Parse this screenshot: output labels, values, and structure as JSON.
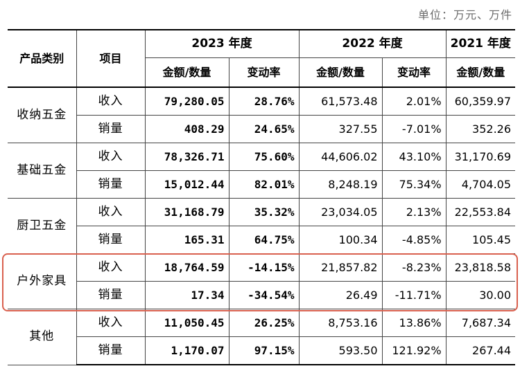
{
  "unit_note": "单位：万元、万件",
  "headers": {
    "category": "产品类别",
    "item": "项目",
    "year_2023": "2023 年度",
    "year_2022": "2022 年度",
    "year_2021": "2021 年度",
    "amount_qty": "金额/数量",
    "change_rate": "变动率"
  },
  "rows": [
    {
      "category": "收纳五金",
      "revenue": {
        "label": "收入",
        "v2023": "79,280.05",
        "r2023": "28.76%",
        "v2022": "61,573.48",
        "r2022": "2.01%",
        "v2021": "60,359.97"
      },
      "sales": {
        "label": "销量",
        "v2023": "408.29",
        "r2023": "24.65%",
        "v2022": "327.55",
        "r2022": "-7.01%",
        "v2021": "352.26"
      }
    },
    {
      "category": "基础五金",
      "revenue": {
        "label": "收入",
        "v2023": "78,326.71",
        "r2023": "75.60%",
        "v2022": "44,606.02",
        "r2022": "43.10%",
        "v2021": "31,170.69"
      },
      "sales": {
        "label": "销量",
        "v2023": "15,012.44",
        "r2023": "82.01%",
        "v2022": "8,248.19",
        "r2022": "75.34%",
        "v2021": "4,704.05"
      }
    },
    {
      "category": "厨卫五金",
      "revenue": {
        "label": "收入",
        "v2023": "31,168.79",
        "r2023": "35.32%",
        "v2022": "23,034.05",
        "r2022": "2.13%",
        "v2021": "22,553.84"
      },
      "sales": {
        "label": "销量",
        "v2023": "165.31",
        "r2023": "64.75%",
        "v2022": "100.34",
        "r2022": "-4.85%",
        "v2021": "105.45"
      }
    },
    {
      "category": "户外家具",
      "revenue": {
        "label": "收入",
        "v2023": "18,764.59",
        "r2023": "-14.15%",
        "v2022": "21,857.82",
        "r2022": "-8.23%",
        "v2021": "23,818.58"
      },
      "sales": {
        "label": "销量",
        "v2023": "17.34",
        "r2023": "-34.54%",
        "v2022": "26.49",
        "r2022": "-11.71%",
        "v2021": "30.00"
      }
    },
    {
      "category": "其他",
      "revenue": {
        "label": "收入",
        "v2023": "11,050.45",
        "r2023": "26.25%",
        "v2022": "8,753.16",
        "r2022": "13.86%",
        "v2021": "7,687.34"
      },
      "sales": {
        "label": "销量",
        "v2023": "1,170.07",
        "r2023": "97.15%",
        "v2022": "593.50",
        "r2022": "121.92%",
        "v2021": "267.44"
      }
    }
  ],
  "colors": {
    "highlight": "#d9604e",
    "border": "#444444"
  }
}
